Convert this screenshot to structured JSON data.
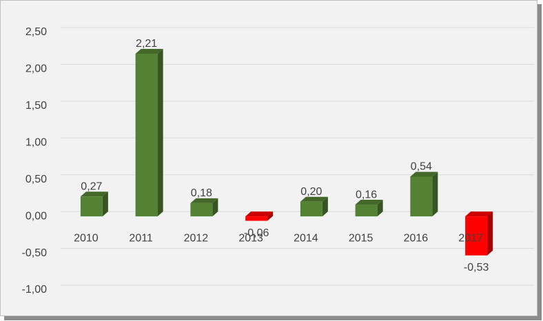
{
  "chart_data": {
    "type": "bar3d",
    "categories": [
      "2010",
      "2011",
      "2012",
      "2013",
      "2014",
      "2015",
      "2016",
      "2017"
    ],
    "values": [
      0.27,
      2.21,
      0.18,
      -0.06,
      0.2,
      0.16,
      0.54,
      -0.53
    ],
    "value_labels": [
      "0,27",
      "2,21",
      "0,18",
      "-0,06",
      "0,20",
      "0,16",
      "0,54",
      "-0,53"
    ],
    "colors": [
      "#548235",
      "#548235",
      "#548235",
      "#ff0000",
      "#548235",
      "#548235",
      "#548235",
      "#ff0000"
    ],
    "ylim": [
      -1,
      2.5
    ],
    "yticks": [
      {
        "value": -1,
        "label": "-1,00"
      },
      {
        "value": -0.5,
        "label": "-0,50"
      },
      {
        "value": 0,
        "label": "0,00"
      },
      {
        "value": 0.5,
        "label": "0,50"
      },
      {
        "value": 1,
        "label": "1,00"
      },
      {
        "value": 1.5,
        "label": "1,50"
      },
      {
        "value": 2,
        "label": "2,00"
      },
      {
        "value": 2.5,
        "label": "2,50"
      }
    ],
    "grid": true
  }
}
